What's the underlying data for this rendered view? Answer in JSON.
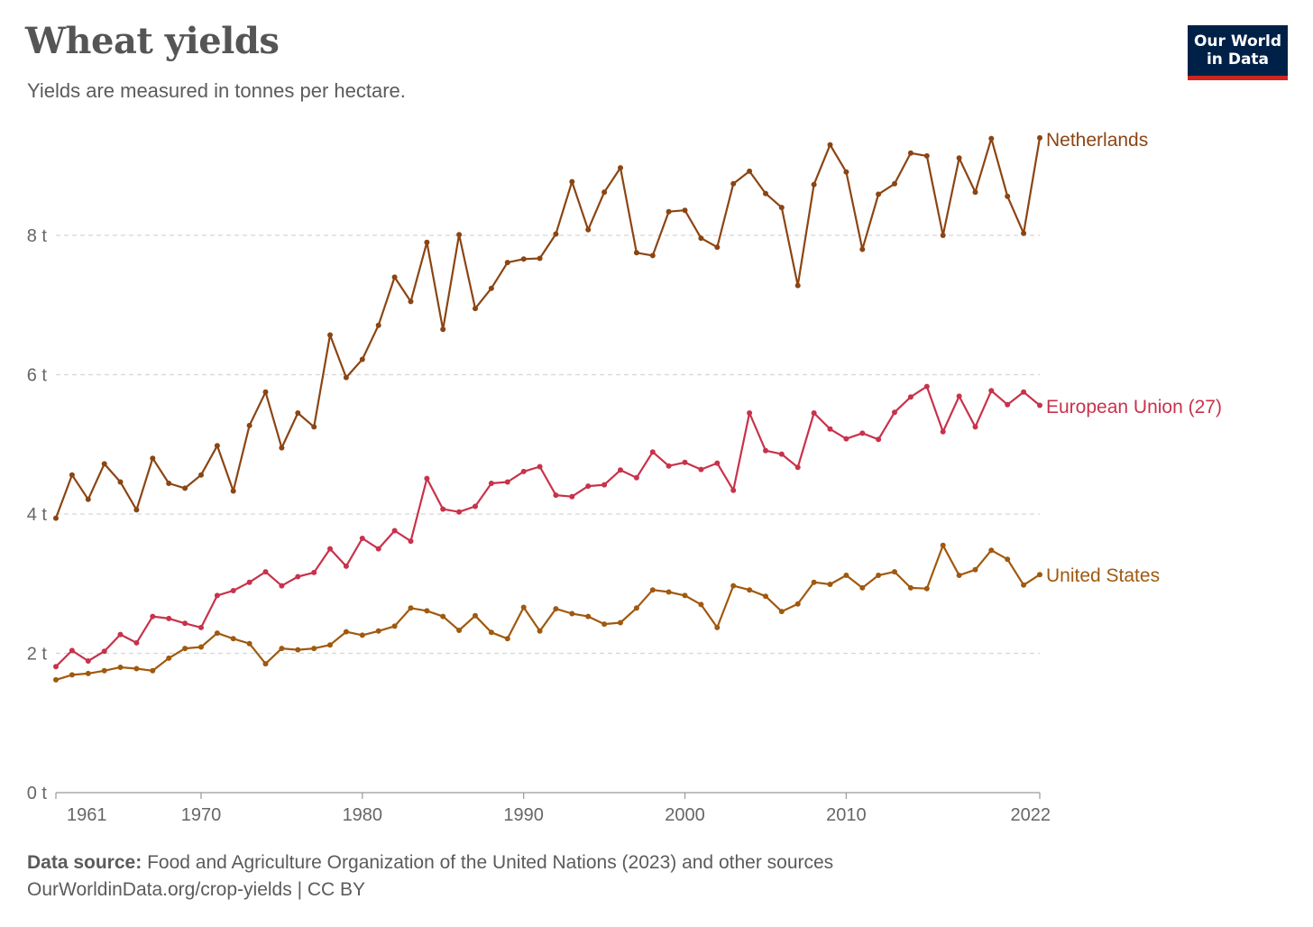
{
  "title": "Wheat yields",
  "subtitle": "Yields are measured in tonnes per hectare.",
  "logo": {
    "line1": "Our World",
    "line2": "in Data"
  },
  "footer": {
    "source_label": "Data source:",
    "source_text": "Food and Agriculture Organization of the United Nations (2023) and other sources",
    "url": "OurWorldinData.org/crop-yields",
    "license": "| CC BY"
  },
  "chart_data": {
    "type": "line",
    "title": "Wheat yields",
    "subtitle": "Yields are measured in tonnes per hectare.",
    "xlim": [
      1961,
      2022
    ],
    "ylim": [
      0,
      9.4
    ],
    "yticks": [
      0,
      2,
      4,
      6,
      8
    ],
    "ytick_labels": [
      "0 t",
      "2 t",
      "4 t",
      "6 t",
      "8 t"
    ],
    "xticks": [
      1961,
      1970,
      1980,
      1990,
      2000,
      2010,
      2022
    ],
    "xtick_labels": [
      "1961",
      "1970",
      "1980",
      "1990",
      "2000",
      "2010",
      "2022"
    ],
    "grid": "horizontal dashed",
    "legend": "inline labels at right end of lines",
    "x": [
      1961,
      1962,
      1963,
      1964,
      1965,
      1966,
      1967,
      1968,
      1969,
      1970,
      1971,
      1972,
      1973,
      1974,
      1975,
      1976,
      1977,
      1978,
      1979,
      1980,
      1981,
      1982,
      1983,
      1984,
      1985,
      1986,
      1987,
      1988,
      1989,
      1990,
      1991,
      1992,
      1993,
      1994,
      1995,
      1996,
      1997,
      1998,
      1999,
      2000,
      2001,
      2002,
      2003,
      2004,
      2005,
      2006,
      2007,
      2008,
      2009,
      2010,
      2011,
      2012,
      2013,
      2014,
      2015,
      2016,
      2017,
      2018,
      2019,
      2020,
      2021,
      2022
    ],
    "series": [
      {
        "name": "Netherlands",
        "color": "#8b4513",
        "values": [
          3.94,
          4.56,
          4.21,
          4.72,
          4.46,
          4.06,
          4.8,
          4.44,
          4.37,
          4.56,
          4.98,
          4.33,
          5.27,
          5.75,
          4.95,
          5.45,
          5.25,
          6.57,
          5.96,
          6.22,
          6.71,
          7.4,
          7.05,
          7.9,
          6.65,
          8.01,
          6.95,
          7.24,
          7.61,
          7.66,
          7.67,
          8.02,
          8.77,
          8.08,
          8.62,
          8.97,
          7.75,
          7.71,
          8.34,
          8.36,
          7.96,
          7.83,
          8.74,
          8.92,
          8.6,
          8.4,
          7.28,
          8.73,
          9.3,
          8.91,
          7.8,
          8.59,
          8.74,
          9.18,
          9.14,
          8.0,
          9.11,
          8.62,
          9.39,
          8.56,
          8.03,
          9.4
        ]
      },
      {
        "name": "European Union (27)",
        "color": "#c8324b",
        "values": [
          1.81,
          2.04,
          1.89,
          2.03,
          2.27,
          2.15,
          2.53,
          2.5,
          2.43,
          2.37,
          2.83,
          2.9,
          3.02,
          3.17,
          2.97,
          3.1,
          3.16,
          3.5,
          3.25,
          3.65,
          3.5,
          3.76,
          3.61,
          4.51,
          4.07,
          4.03,
          4.11,
          4.44,
          4.46,
          4.61,
          4.68,
          4.27,
          4.25,
          4.4,
          4.42,
          4.63,
          4.52,
          4.89,
          4.69,
          4.74,
          4.64,
          4.73,
          4.34,
          5.45,
          4.91,
          4.86,
          4.67,
          5.45,
          5.22,
          5.08,
          5.16,
          5.07,
          5.46,
          5.68,
          5.83,
          5.18,
          5.69,
          5.25,
          5.77,
          5.57,
          5.75,
          5.56
        ]
      },
      {
        "name": "United States",
        "color": "#a0590e",
        "values": [
          1.62,
          1.69,
          1.71,
          1.75,
          1.8,
          1.78,
          1.75,
          1.93,
          2.07,
          2.09,
          2.29,
          2.21,
          2.14,
          1.85,
          2.07,
          2.05,
          2.07,
          2.12,
          2.31,
          2.26,
          2.32,
          2.39,
          2.65,
          2.61,
          2.53,
          2.33,
          2.54,
          2.3,
          2.21,
          2.66,
          2.32,
          2.64,
          2.57,
          2.53,
          2.42,
          2.44,
          2.65,
          2.91,
          2.88,
          2.83,
          2.7,
          2.37,
          2.97,
          2.91,
          2.82,
          2.6,
          2.71,
          3.02,
          2.99,
          3.12,
          2.94,
          3.12,
          3.17,
          2.94,
          2.93,
          3.55,
          3.12,
          3.2,
          3.48,
          3.35,
          2.98,
          3.13
        ]
      }
    ]
  }
}
